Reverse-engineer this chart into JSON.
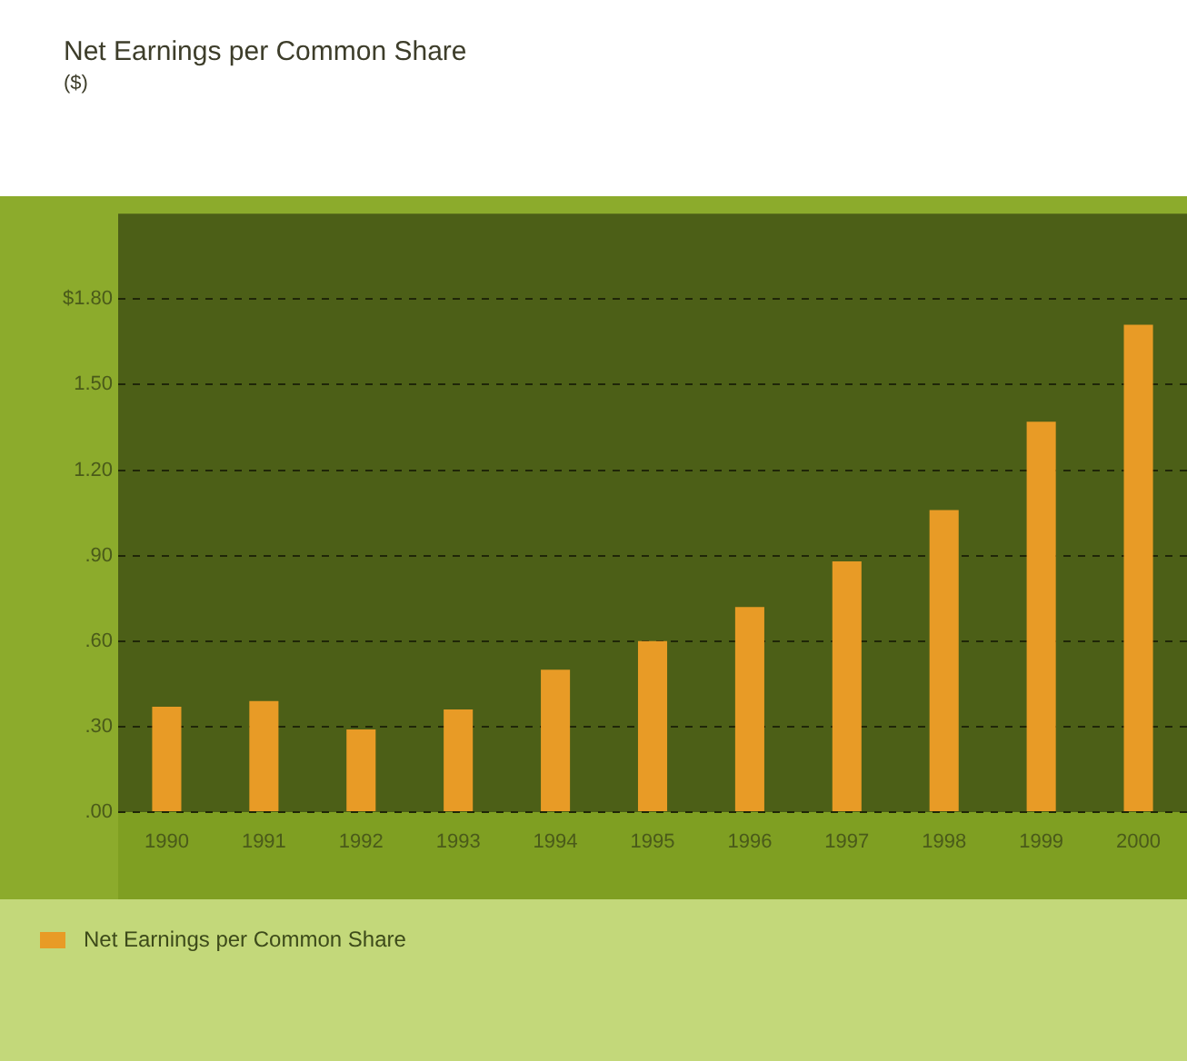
{
  "chart_data": {
    "type": "bar",
    "title": "Net Earnings per Common Share",
    "subtitle": "($)",
    "categories": [
      "1990",
      "1991",
      "1992",
      "1993",
      "1994",
      "1995",
      "1996",
      "1997",
      "1998",
      "1999",
      "2000"
    ],
    "series": [
      {
        "name": "Net Earnings per Common Share",
        "color": "#e89b26",
        "values": [
          0.37,
          0.39,
          0.29,
          0.36,
          0.5,
          0.6,
          0.72,
          0.88,
          1.06,
          1.37,
          1.71
        ]
      }
    ],
    "ylim": [
      0,
      2.1
    ],
    "yticks": [
      {
        "value": 0,
        "label": ".00"
      },
      {
        "value": 0.3,
        "label": ".30"
      },
      {
        "value": 0.6,
        "label": ".60"
      },
      {
        "value": 0.9,
        "label": ".90"
      },
      {
        "value": 1.2,
        "label": "1.20"
      },
      {
        "value": 1.5,
        "label": "1.50"
      },
      {
        "value": 1.8,
        "label": "$1.80"
      }
    ],
    "grid": "y",
    "legend": "bottom left"
  }
}
